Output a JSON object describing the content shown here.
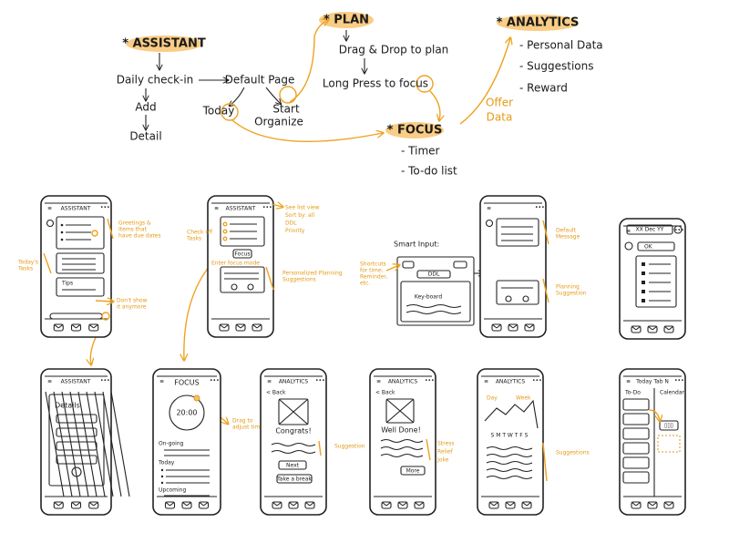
{
  "flow": {
    "assistant": "* ASSISTANT",
    "daily_checkin": "Daily check-in",
    "default_page": "Default Page",
    "add": "Add",
    "detail": "Detail",
    "today": "Today",
    "start": "Start",
    "organize": "Organize",
    "plan": "* PLAN",
    "drag_drop": "Drag & Drop to plan",
    "long_press": "Long Press to focus",
    "focus": "* FOCUS",
    "timer": "- Timer",
    "todo": "- To-do list",
    "analytics": "* ANALYTICS",
    "personal_data": "- Personal Data",
    "suggestions": "- Suggestions",
    "reward": "- Reward",
    "offer_data": [
      "Offer",
      "Data"
    ]
  },
  "screens": {
    "s1": {
      "title": "ASSISTANT",
      "tips": "Tips",
      "note_greet": [
        "Greetings &",
        "Items that",
        "have due dates"
      ],
      "note_tasks": [
        "Today's",
        "Tasks"
      ],
      "note_hide": [
        "Don't show",
        "it anymore"
      ]
    },
    "s2": {
      "title": "ASSISTANT",
      "focus": "Focus",
      "note_check": [
        "Check off",
        "Tasks"
      ],
      "note_enter": "Enter focus mode",
      "note_list": [
        "See list view",
        "Sort by: all",
        "DDL",
        "Priority"
      ],
      "note_plan": [
        "Personalized Planning",
        "Suggestions"
      ]
    },
    "smart": {
      "title": "Smart Input:",
      "note": [
        "Shortcuts",
        "for time,",
        "Reminder,",
        "etc."
      ],
      "chip": "DDL",
      "keyboard": "Key-board"
    },
    "s3": {
      "date": "XX Dec YY",
      "note_default": [
        "Default",
        "Message"
      ],
      "note_plan": [
        "Planning",
        "Suggestion"
      ]
    },
    "s4": {
      "date": "XX Dec YY",
      "ok": "OK"
    },
    "s5": {
      "title": "ASSISTANT",
      "details": "Details"
    },
    "s6": {
      "title": "FOCUS",
      "timer": "20:00",
      "ongoing": "On-going",
      "today": "Today",
      "upcoming": "Upcoming",
      "note": [
        "Drag to",
        "adjust timer"
      ]
    },
    "s7": {
      "title": "ANALYTICS",
      "back": "< Back",
      "congrats": "Congrats!",
      "next": "Next",
      "break": "Take a break",
      "note": "Suggestion"
    },
    "s8": {
      "title": "ANALYTICS",
      "back": "< Back",
      "done": "Well Done!",
      "more": "More",
      "note": [
        "Stress",
        "Relief",
        "Joke"
      ]
    },
    "s9": {
      "title": "ANALYTICS",
      "day": "Day",
      "week": "Week",
      "days": "S M T W T F S",
      "note": "Suggestions"
    },
    "s10": {
      "title": "Today Tab N",
      "todo": "To-Do",
      "calendar": "Calendar"
    }
  }
}
